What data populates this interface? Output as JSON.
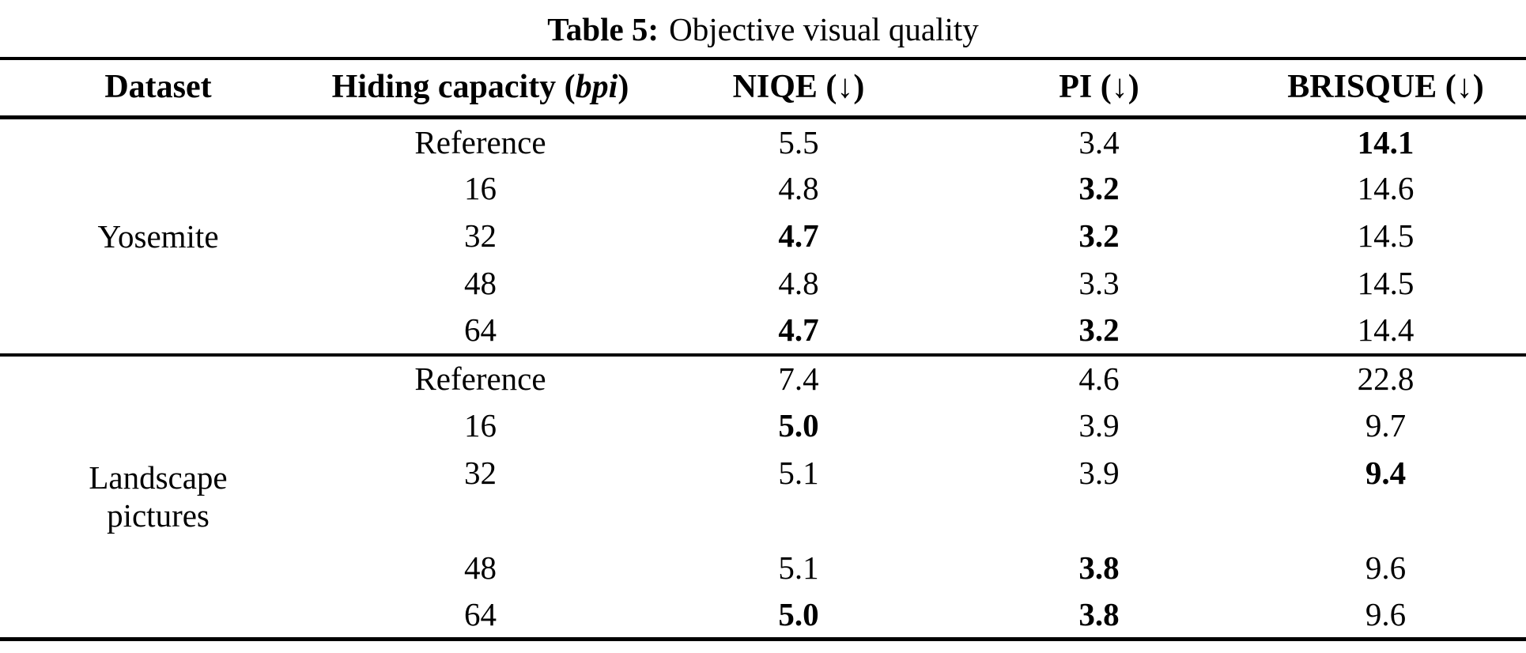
{
  "caption": {
    "label": "Table 5:",
    "text": "Objective visual quality"
  },
  "table": {
    "header": {
      "dataset": "Dataset",
      "hiding_prefix": "Hiding capacity (",
      "hiding_italic": "bpi",
      "hiding_suffix": ")",
      "niqe": "NIQE (↓)",
      "pi": "PI (↓)",
      "brisque": "BRISQUE (↓)"
    },
    "sections": [
      {
        "dataset": "Yosemite",
        "dataset_lines": [
          "Yosemite"
        ],
        "rows": [
          {
            "capacity": "Reference",
            "niqe": "5.5",
            "pi": "3.4",
            "brisque": "14.1",
            "bold": [
              "brisque"
            ]
          },
          {
            "capacity": "16",
            "niqe": "4.8",
            "pi": "3.2",
            "brisque": "14.6",
            "bold": [
              "pi"
            ]
          },
          {
            "capacity": "32",
            "niqe": "4.7",
            "pi": "3.2",
            "brisque": "14.5",
            "bold": [
              "niqe",
              "pi"
            ]
          },
          {
            "capacity": "48",
            "niqe": "4.8",
            "pi": "3.3",
            "brisque": "14.5",
            "bold": []
          },
          {
            "capacity": "64",
            "niqe": "4.7",
            "pi": "3.2",
            "brisque": "14.4",
            "bold": [
              "niqe",
              "pi"
            ]
          }
        ]
      },
      {
        "dataset": "Landscape pictures",
        "dataset_lines": [
          "Landscape",
          "pictures"
        ],
        "rows": [
          {
            "capacity": "Reference",
            "niqe": "7.4",
            "pi": "4.6",
            "brisque": "22.8",
            "bold": []
          },
          {
            "capacity": "16",
            "niqe": "5.0",
            "pi": "3.9",
            "brisque": "9.7",
            "bold": [
              "niqe"
            ]
          },
          {
            "capacity": "32",
            "niqe": "5.1",
            "pi": "3.9",
            "brisque": "9.4",
            "bold": [
              "brisque"
            ]
          },
          {
            "capacity": "48",
            "niqe": "5.1",
            "pi": "3.8",
            "brisque": "9.6",
            "bold": [
              "pi"
            ]
          },
          {
            "capacity": "64",
            "niqe": "5.0",
            "pi": "3.8",
            "brisque": "9.6",
            "bold": [
              "niqe",
              "pi"
            ]
          }
        ]
      }
    ]
  }
}
